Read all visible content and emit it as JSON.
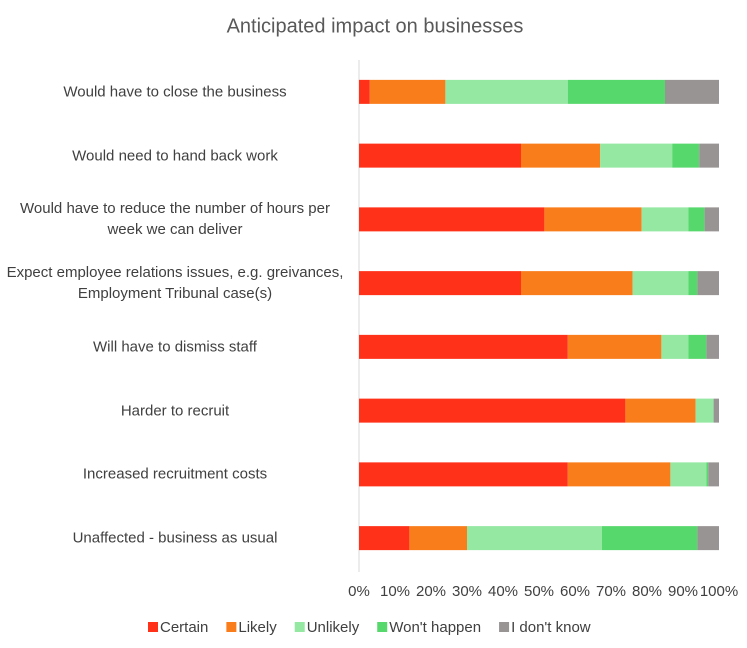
{
  "chart_data": {
    "type": "stacked_bar_horizontal",
    "title": "Anticipated impact on businesses",
    "categories": [
      "Would have to close the business",
      "Would need to hand back work",
      "Would have to reduce the number of hours per week we can deliver",
      "Expect employee relations issues, e.g. greivances, Employment Tribunal case(s)",
      "Will have to dismiss staff",
      "Harder to recruit",
      "Increased recruitment costs",
      "Unaffected - business as usual"
    ],
    "series": [
      {
        "name": "Certain",
        "color": "#ff3219",
        "values": [
          3,
          45,
          51.5,
          45,
          58,
          74,
          58,
          14
        ]
      },
      {
        "name": "Likely",
        "color": "#fa7d1c",
        "values": [
          21,
          22,
          27,
          31,
          26,
          19.5,
          28.5,
          16
        ]
      },
      {
        "name": "Unlikely",
        "color": "#94e8a2",
        "values": [
          34,
          20,
          13,
          15.5,
          7.5,
          5,
          10,
          37.5
        ]
      },
      {
        "name": "Won't happen",
        "color": "#57d86d",
        "values": [
          27,
          7.5,
          4.5,
          2.5,
          5,
          0,
          0.5,
          26.5
        ]
      },
      {
        "name": "I don't know",
        "color": "#999494",
        "values": [
          15,
          5.5,
          4,
          6,
          3.5,
          1.5,
          3,
          6
        ]
      }
    ],
    "xlim": [
      0,
      100
    ],
    "xticks": [
      {
        "value": 0,
        "label": "0%"
      },
      {
        "value": 10,
        "label": "10%"
      },
      {
        "value": 20,
        "label": "20%"
      },
      {
        "value": 30,
        "label": "30%"
      },
      {
        "value": 40,
        "label": "40%"
      },
      {
        "value": 50,
        "label": "50%"
      },
      {
        "value": 60,
        "label": "60%"
      },
      {
        "value": 70,
        "label": "70%"
      },
      {
        "value": 80,
        "label": "80%"
      },
      {
        "value": 90,
        "label": "90%"
      },
      {
        "value": 100,
        "label": "100%"
      }
    ],
    "legend": "bottom"
  }
}
